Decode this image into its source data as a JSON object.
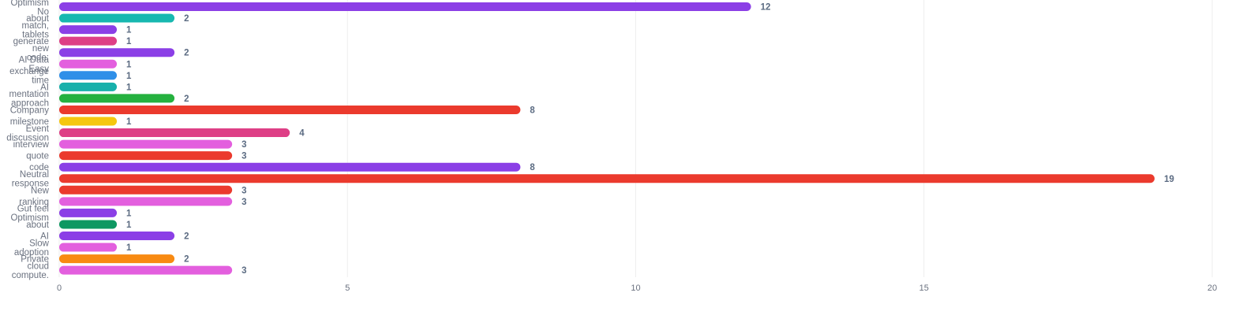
{
  "chart_data": {
    "type": "bar",
    "orientation": "horizontal",
    "xlim": [
      0,
      20
    ],
    "x_ticks": [
      "0",
      "5",
      "10",
      "15",
      "20"
    ],
    "grid": true,
    "title": "",
    "xlabel": "",
    "ylabel": "",
    "bars": [
      {
        "label_lines": [
          "Optimism",
          "No"
        ],
        "value": 12,
        "color": "#8b3fe6"
      },
      {
        "label_lines": [
          "about"
        ],
        "value": 2,
        "color": "#17b8b0"
      },
      {
        "label_lines": [
          "match,",
          "tablets"
        ],
        "value": 1,
        "color": "#8b3fe6"
      },
      {
        "label_lines": [
          "generate"
        ],
        "value": 1,
        "color": "#de3f86"
      },
      {
        "label_lines": [
          "new",
          "code:"
        ],
        "value": 2,
        "color": "#8b3fe6"
      },
      {
        "label_lines": [
          "AI Data",
          "Easy"
        ],
        "value": 1,
        "color": "#e35fde"
      },
      {
        "label_lines": [
          "exchange",
          "time"
        ],
        "value": 1,
        "color": "#2f8fe8"
      },
      {
        "label_lines": [
          "AI"
        ],
        "value": 1,
        "color": "#17b0ab"
      },
      {
        "label_lines": [
          "mentation",
          "approach"
        ],
        "value": 2,
        "color": "#25b13f"
      },
      {
        "label_lines": [
          "Company"
        ],
        "value": 8,
        "color": "#eb3a2d"
      },
      {
        "label_lines": [
          "milestone"
        ],
        "value": 1,
        "color": "#f5c70f"
      },
      {
        "label_lines": [
          "Event",
          "discussion"
        ],
        "value": 4,
        "color": "#de3f86"
      },
      {
        "label_lines": [
          "interview"
        ],
        "value": 3,
        "color": "#e35fde"
      },
      {
        "label_lines": [
          "quote"
        ],
        "value": 3,
        "color": "#eb3a2d"
      },
      {
        "label_lines": [
          "code"
        ],
        "value": 8,
        "color": "#8b3fe6"
      },
      {
        "label_lines": [
          "Neutral",
          "response"
        ],
        "value": 19,
        "color": "#eb3a2d"
      },
      {
        "label_lines": [
          "New"
        ],
        "value": 3,
        "color": "#eb3a2d"
      },
      {
        "label_lines": [
          "ranking"
        ],
        "value": 3,
        "color": "#e35fde"
      },
      {
        "label_lines": [
          "Gut feel",
          "Optimism"
        ],
        "value": 1,
        "color": "#8b3fe6"
      },
      {
        "label_lines": [
          "about"
        ],
        "value": 1,
        "color": "#0e9862"
      },
      {
        "label_lines": [
          "AI"
        ],
        "value": 2,
        "color": "#8b3fe6"
      },
      {
        "label_lines": [
          "Slow",
          "adoption"
        ],
        "value": 1,
        "color": "#e35fde"
      },
      {
        "label_lines": [
          "Private"
        ],
        "value": 2,
        "color": "#f88a12"
      },
      {
        "label_lines": [
          "cloud",
          "compute."
        ],
        "value": 3,
        "color": "#e35fde"
      }
    ]
  }
}
